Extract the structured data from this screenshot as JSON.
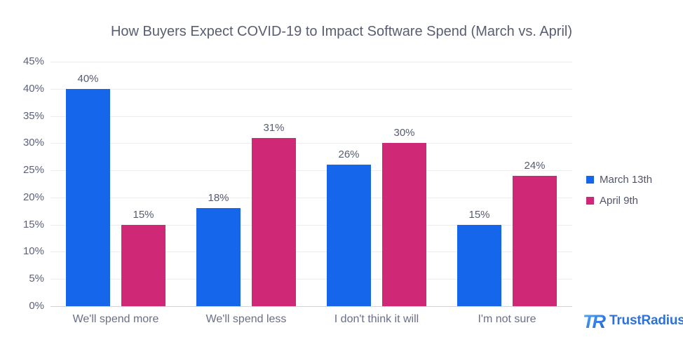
{
  "chart_data": {
    "type": "bar",
    "title": "How Buyers Expect COVID-19 to Impact Software Spend (March vs. April)",
    "categories": [
      "We'll spend more",
      "We'll spend less",
      "I don't think it will",
      "I'm not sure"
    ],
    "series": [
      {
        "name": "March 13th",
        "color": "#1666eb",
        "values": [
          40,
          18,
          26,
          15
        ],
        "labels": [
          "40%",
          "18%",
          "26%",
          "15%"
        ]
      },
      {
        "name": "April 9th",
        "color": "#ce2877",
        "values": [
          15,
          31,
          30,
          24
        ],
        "labels": [
          "15%",
          "31%",
          "30%",
          "24%"
        ]
      }
    ],
    "xlabel": "",
    "ylabel": "",
    "ylim": [
      0,
      45
    ],
    "y_ticks": [
      {
        "v": 45,
        "label": "45%"
      },
      {
        "v": 40,
        "label": "40%"
      },
      {
        "v": 35,
        "label": "35%"
      },
      {
        "v": 30,
        "label": "30%"
      },
      {
        "v": 25,
        "label": "25%"
      },
      {
        "v": 20,
        "label": "20%"
      },
      {
        "v": 15,
        "label": "15%"
      },
      {
        "v": 10,
        "label": "10%"
      },
      {
        "v": 5,
        "label": "5%"
      },
      {
        "v": 0,
        "label": "0%"
      }
    ],
    "grid": true,
    "legend_position": "right",
    "value_suffix": "%"
  },
  "branding": {
    "logo_text": "TrustRadius",
    "logo_mark": "TR",
    "logo_text_color": "#2e71da",
    "logo_gradient_start": "#53aef5",
    "logo_gradient_end": "#1e5bd4"
  },
  "style": {
    "title_color": "#595d71",
    "grid_color": "#ececf1",
    "axis_line_color": "#d2d4dc",
    "tick_label_color": "#5c607a",
    "category_label_color": "#6a6e88",
    "value_label_color": "#575b6f",
    "legend_label_color": "#51556a",
    "background": "#ffffff"
  }
}
